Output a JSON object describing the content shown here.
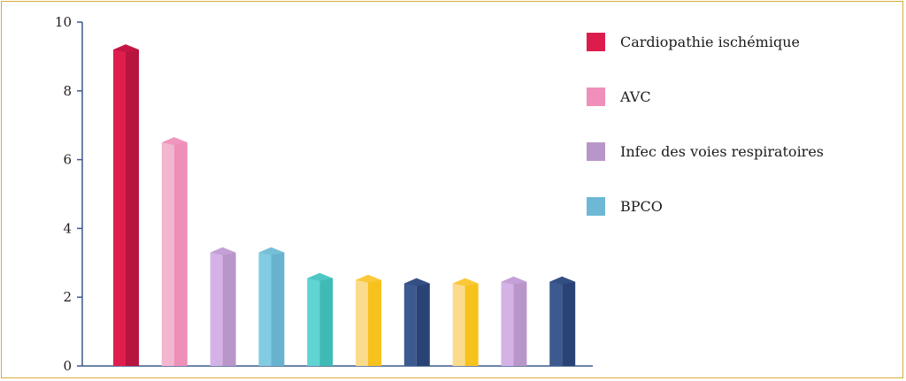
{
  "chart_data": {
    "type": "bar",
    "title": "",
    "xlabel": "",
    "ylabel": "",
    "ylim": [
      0,
      10
    ],
    "yticks": [
      0,
      2,
      4,
      6,
      8,
      10
    ],
    "grid": false,
    "legend_position": "right",
    "categories": [
      "",
      "",
      "",
      "",
      "",
      "",
      "",
      "",
      "",
      ""
    ],
    "values": [
      9.2,
      6.5,
      3.3,
      3.3,
      2.55,
      2.5,
      2.4,
      2.4,
      2.45,
      2.45
    ],
    "bar_colors": [
      {
        "front": "#e01e4e",
        "side": "#b81440",
        "top": "#c41644"
      },
      {
        "front": "#f2b6cf",
        "side": "#ee8fb8",
        "top": "#f095be"
      },
      {
        "front": "#d4b2e6",
        "side": "#b996c9",
        "top": "#c3a1d6"
      },
      {
        "front": "#81cce2",
        "side": "#66b2cf",
        "top": "#77bfd8"
      },
      {
        "front": "#5fd4d2",
        "side": "#3fbab7",
        "top": "#4ec7c5"
      },
      {
        "front": "#fbdc8e",
        "side": "#f7c21e",
        "top": "#f9c93a"
      },
      {
        "front": "#3c5a90",
        "side": "#2a4376",
        "top": "#344f84"
      },
      {
        "front": "#fbdc8e",
        "side": "#f7c21e",
        "top": "#f9c93a"
      },
      {
        "front": "#d4b2e6",
        "side": "#b996c9",
        "top": "#c3a1d6"
      },
      {
        "front": "#3c5a90",
        "side": "#2a4376",
        "top": "#344f84"
      }
    ],
    "legend": [
      {
        "label": "Cardiopathie ischémique",
        "color": "#dc1d4c"
      },
      {
        "label": "AVC",
        "color": "#ef8fba"
      },
      {
        "label": "Infec des voies respiratoires",
        "color": "#b996c9"
      },
      {
        "label": "BPCO",
        "color": "#6db8d4"
      }
    ],
    "colors": {
      "axis": "#3c5a8c",
      "frame": "#d8a93a",
      "text": "#1c1c1c"
    }
  }
}
